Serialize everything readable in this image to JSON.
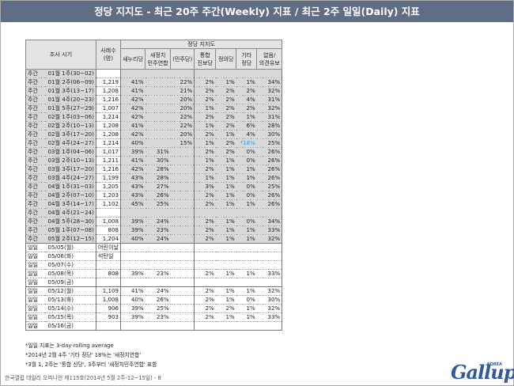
{
  "title": "정당 지지도 - 최근 20주 주간(Weekly) 지표 / 최근 2주 일일(Daily) 지표",
  "table": {
    "header": {
      "period": "조사 시기",
      "sample_line1": "사례수",
      "sample_line2": "(명)",
      "group": "정당 지지도",
      "saenuri": "새누리당",
      "minju_line1": "새정치",
      "minju_line2": "민주연합",
      "minjudang": "(민주당)",
      "unity_line1": "통합",
      "unity_line2": "진보당",
      "justice": "정의당",
      "other_line1": "기타",
      "other_line2": "정당",
      "none_line1": "없음/",
      "none_line2": "의견유보"
    },
    "weekly": [
      {
        "k": "주간",
        "p": "01월 1주(30~02)",
        "n": "",
        "s": "",
        "m": "",
        "d": "",
        "u": "",
        "j": "",
        "e": "",
        "o": ""
      },
      {
        "k": "주간",
        "p": "01월 2주(06~09)",
        "n": "1,219",
        "s": "41%",
        "m": "",
        "d": "22%",
        "u": "2%",
        "j": "1%",
        "e": "1%",
        "o": "34%"
      },
      {
        "k": "주간",
        "p": "01월 3주(13~17)",
        "n": "1,208",
        "s": "41%",
        "m": "",
        "d": "21%",
        "u": "2%",
        "j": "2%",
        "e": "2%",
        "o": "32%"
      },
      {
        "k": "주간",
        "p": "01월 4주(20~23)",
        "n": "1,216",
        "s": "42%",
        "m": "",
        "d": "20%",
        "u": "2%",
        "j": "2%",
        "e": "4%",
        "o": "31%"
      },
      {
        "k": "주간",
        "p": "01월 5주(27~29)",
        "n": "1,007",
        "s": "42%",
        "m": "",
        "d": "20%",
        "u": "1%",
        "j": "2%",
        "e": "2%",
        "o": "32%"
      },
      {
        "k": "주간",
        "p": "02월 1주(03~06)",
        "n": "1,214",
        "s": "42%",
        "m": "",
        "d": "22%",
        "u": "2%",
        "j": "2%",
        "e": "1%",
        "o": "31%"
      },
      {
        "k": "주간",
        "p": "02월 2주(10~13)",
        "n": "1,208",
        "s": "41%",
        "m": "",
        "d": "22%",
        "u": "1%",
        "j": "2%",
        "e": "6%",
        "o": "28%"
      },
      {
        "k": "주간",
        "p": "02월 3주(17~20)",
        "n": "1,208",
        "s": "42%",
        "m": "",
        "d": "20%",
        "u": "2%",
        "j": "1%",
        "e": "4%",
        "o": "30%"
      },
      {
        "k": "주간",
        "p": "02월 4주(24~27)",
        "n": "1,214",
        "s": "40%",
        "m": "",
        "d": "15%",
        "u": "1%",
        "j": "2%",
        "e": "*18%",
        "o": "25%",
        "e_blue": true
      },
      {
        "k": "주간",
        "p": "03월 1주(04~06)",
        "n": "1,017",
        "s": "39%",
        "m": "31%",
        "d": "",
        "u": "2%",
        "j": "2%",
        "e": "0%",
        "o": "26%"
      },
      {
        "k": "주간",
        "p": "03월 2주(10~13)",
        "n": "1,211",
        "s": "41%",
        "m": "30%",
        "d": "",
        "u": "1%",
        "j": "1%",
        "e": "0%",
        "o": "26%"
      },
      {
        "k": "주간",
        "p": "03월 3주(17~20)",
        "n": "1,216",
        "s": "42%",
        "m": "28%",
        "d": "",
        "u": "2%",
        "j": "1%",
        "e": "1%",
        "o": "26%"
      },
      {
        "k": "주간",
        "p": "03월 4주(24~27)",
        "n": "1,199",
        "s": "43%",
        "m": "28%",
        "d": "",
        "u": "1%",
        "j": "1%",
        "e": "1%",
        "o": "26%"
      },
      {
        "k": "주간",
        "p": "04월 1주(31~03)",
        "n": "1,205",
        "s": "43%",
        "m": "27%",
        "d": "",
        "u": "3%",
        "j": "1%",
        "e": "0%",
        "o": "25%"
      },
      {
        "k": "주간",
        "p": "04월 2주(07~10)",
        "n": "1,203",
        "s": "43%",
        "m": "26%",
        "d": "",
        "u": "2%",
        "j": "1%",
        "e": "0%",
        "o": "26%"
      },
      {
        "k": "주간",
        "p": "04월 3주(14~17)",
        "n": "1,102",
        "s": "45%",
        "m": "25%",
        "d": "",
        "u": "2%",
        "j": "1%",
        "e": "1%",
        "o": "26%"
      },
      {
        "k": "주간",
        "p": "04월 4주(21~24)",
        "n": "",
        "s": "",
        "m": "",
        "d": "",
        "u": "",
        "j": "",
        "e": "",
        "o": ""
      },
      {
        "k": "주간",
        "p": "04월 5주(28~30)",
        "n": "1,008",
        "s": "39%",
        "m": "24%",
        "d": "",
        "u": "2%",
        "j": "1%",
        "e": "0%",
        "o": "34%"
      },
      {
        "k": "주간",
        "p": "05월 1주(07~08)",
        "n": "808",
        "s": "39%",
        "m": "23%",
        "d": "",
        "u": "2%",
        "j": "1%",
        "e": "1%",
        "o": "33%"
      },
      {
        "k": "주간",
        "p": "05월 2주(12~15)",
        "n": "1,204",
        "s": "40%",
        "m": "24%",
        "d": "",
        "u": "2%",
        "j": "1%",
        "e": "1%",
        "o": "32%"
      }
    ],
    "daily1": [
      {
        "k": "일일",
        "p": "05/05(월)",
        "n": "어린이날",
        "s": "",
        "m": "",
        "d": "",
        "u": "",
        "j": "",
        "e": "",
        "o": ""
      },
      {
        "k": "일일",
        "p": "05/06(화)",
        "n": "석탄일",
        "s": "",
        "m": "",
        "d": "",
        "u": "",
        "j": "",
        "e": "",
        "o": ""
      },
      {
        "k": "일일",
        "p": "05/07(수)",
        "n": "",
        "s": "",
        "m": "",
        "d": "",
        "u": "",
        "j": "",
        "e": "",
        "o": ""
      },
      {
        "k": "일일",
        "p": "05/08(목)",
        "n": "808",
        "s": "39%",
        "m": "23%",
        "d": "",
        "u": "2%",
        "j": "1%",
        "e": "1%",
        "o": "33%"
      },
      {
        "k": "일일",
        "p": "05/09(금)",
        "n": "",
        "s": "",
        "m": "",
        "d": "",
        "u": "",
        "j": "",
        "e": "",
        "o": ""
      }
    ],
    "daily2": [
      {
        "k": "일일",
        "p": "05/12(월)",
        "n": "1,109",
        "s": "41%",
        "m": "24%",
        "d": "",
        "u": "2%",
        "j": "1%",
        "e": "1%",
        "o": "32%"
      },
      {
        "k": "일일",
        "p": "05/13(화)",
        "n": "1,008",
        "s": "40%",
        "m": "26%",
        "d": "",
        "u": "2%",
        "j": "1%",
        "e": "0%",
        "o": "30%"
      },
      {
        "k": "일일",
        "p": "05/14(수)",
        "n": "906",
        "s": "39%",
        "m": "25%",
        "d": "",
        "u": "2%",
        "j": "2%",
        "e": "1%",
        "o": "32%"
      },
      {
        "k": "일일",
        "p": "05/15(목)",
        "n": "903",
        "s": "39%",
        "m": "23%",
        "d": "",
        "u": "2%",
        "j": "1%",
        "e": "1%",
        "o": "33%"
      },
      {
        "k": "일일",
        "p": "05/16(금)",
        "n": "",
        "s": "",
        "m": "",
        "d": "",
        "u": "",
        "j": "",
        "e": "",
        "o": ""
      }
    ]
  },
  "notes": [
    "*일일 지표는 3-day-rolling average",
    "*2014년 2월 4주 '기타 정당' 18%는 '새정치연합'",
    "*3월 1, 2주는 '통합 신당', 3주부터 '새정치민주연합' 표함"
  ],
  "footer": "한국갤럽 데일리 오피니언 제115호(2014년 5월 2주-12~15일) - 8",
  "logo": {
    "text": "Gallup",
    "sub": "KOREA"
  },
  "colors": {
    "title_bg": "#5f6d85",
    "weekly_row_bg": "#d9d9d9",
    "header_bg": "#e3e3e3",
    "accent_blue": "#2a9ee0",
    "logo": "#2f5a9e"
  }
}
